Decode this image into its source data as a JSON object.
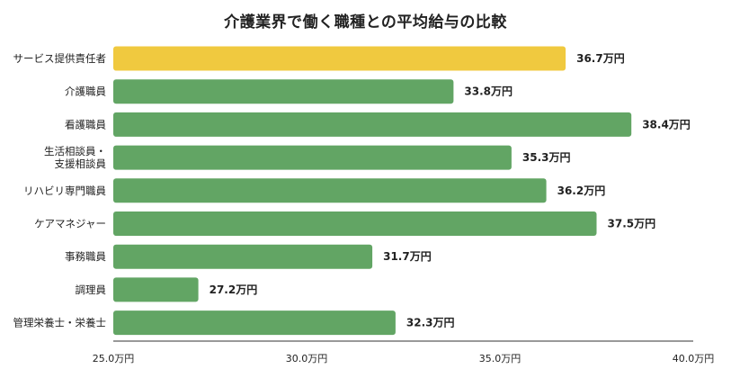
{
  "chart_data": {
    "type": "bar",
    "orientation": "horizontal",
    "title": "介護業界で働く職種との平均給与の比較",
    "xlabel": "",
    "ylabel": "",
    "unit": "万円",
    "xlim": [
      25.0,
      40.0
    ],
    "xticks": [
      {
        "value": 25.0,
        "label": "25.0万円"
      },
      {
        "value": 30.0,
        "label": "30.0万円"
      },
      {
        "value": 35.0,
        "label": "35.0万円"
      },
      {
        "value": 40.0,
        "label": "40.0万円"
      }
    ],
    "grid": false,
    "legend": "none",
    "categories": [
      [
        "サービス提供責任者"
      ],
      [
        "介護職員"
      ],
      [
        "看護職員"
      ],
      [
        "生活相談員・",
        "支援相談員"
      ],
      [
        "リハビリ専門職員"
      ],
      [
        "ケアマネジャー"
      ],
      [
        "事務職員"
      ],
      [
        "調理員"
      ],
      [
        "管理栄養士・栄養士"
      ]
    ],
    "values": [
      36.7,
      33.8,
      38.4,
      35.3,
      36.2,
      37.5,
      31.7,
      27.2,
      32.3
    ],
    "data_labels": [
      "36.7万円",
      "33.8万円",
      "38.4万円",
      "35.3万円",
      "36.2万円",
      "37.5万円",
      "31.7万円",
      "27.2万円",
      "32.3万円"
    ],
    "highlight_index": 0,
    "colors": {
      "default": "#62a564",
      "highlight": "#f0c93f",
      "axis": "#333333"
    }
  }
}
